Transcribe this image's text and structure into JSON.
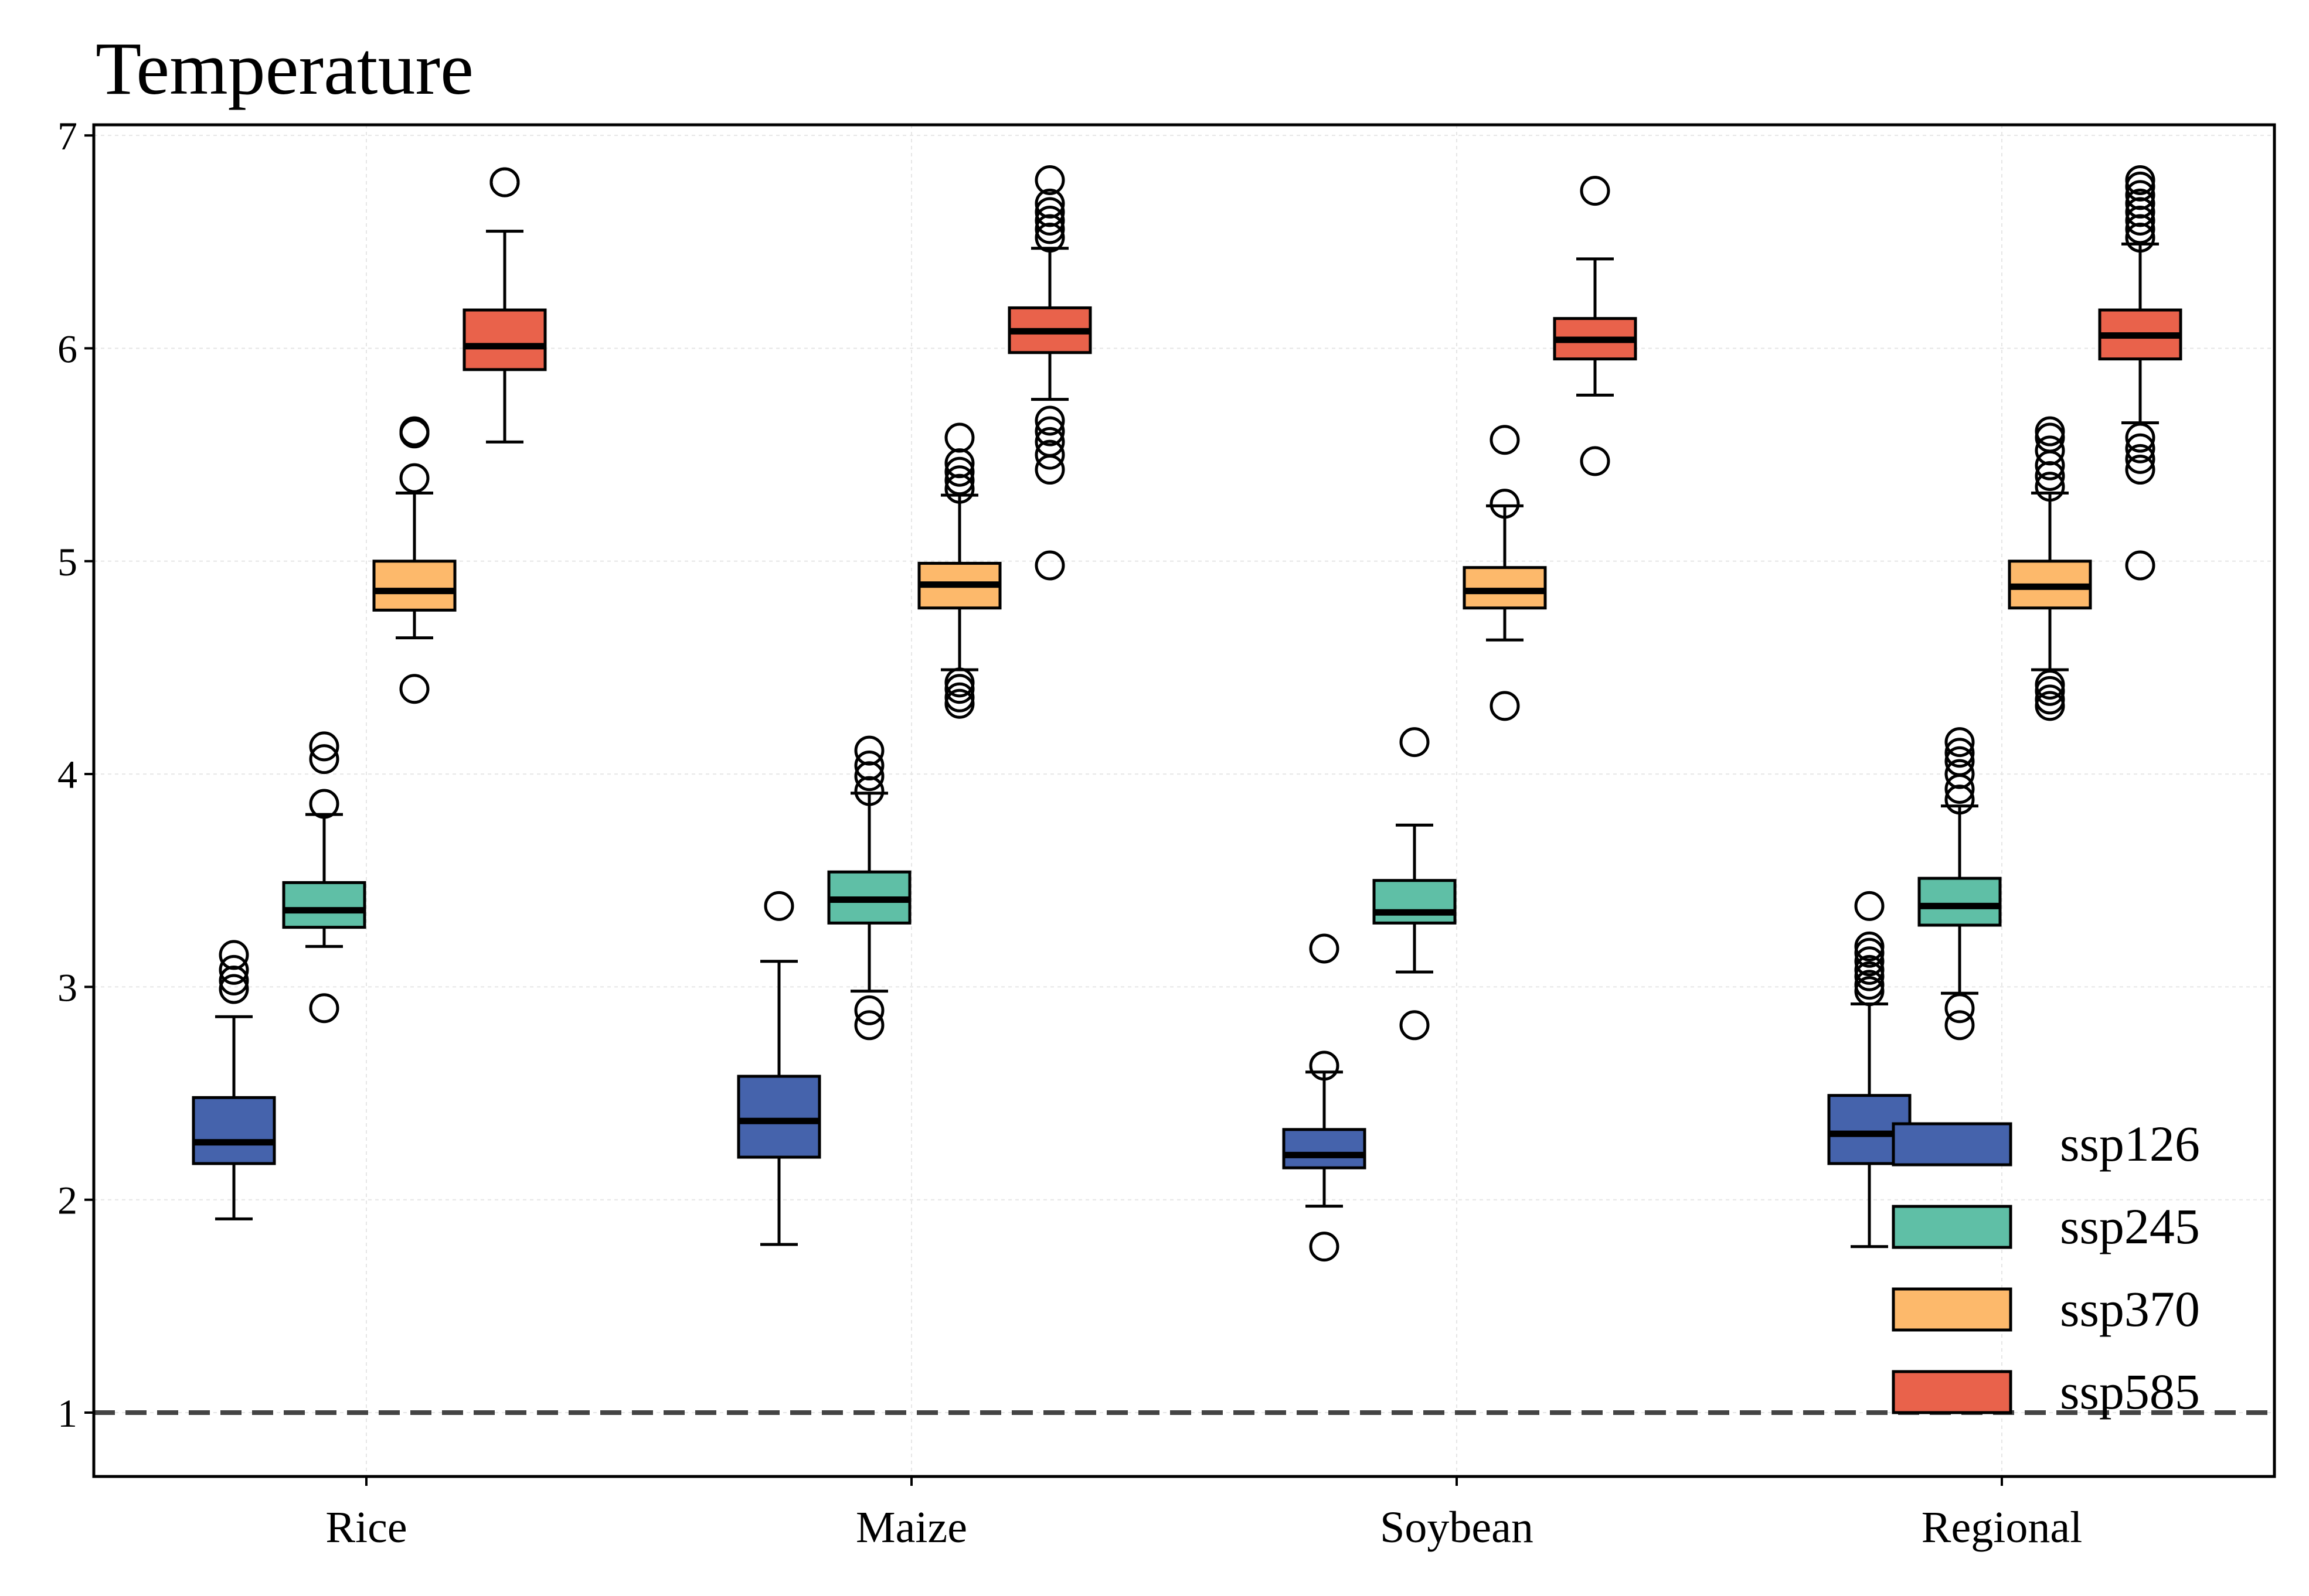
{
  "chart_data": {
    "type": "box",
    "title": "Temperature",
    "xlabel": "",
    "ylabel": "",
    "categories": [
      "Rice",
      "Maize",
      "Soybean",
      "Regional"
    ],
    "ylim": [
      0.7,
      7.05
    ],
    "yticks": [
      1,
      2,
      3,
      4,
      5,
      6,
      7
    ],
    "grid": true,
    "legend_position": "lower-right",
    "reference_line": {
      "y": 1,
      "style": "dashed",
      "color": "#444444"
    },
    "series": [
      {
        "name": "ssp126",
        "color": "#4563AC",
        "boxes": [
          {
            "whisker_low": 1.91,
            "q1": 2.17,
            "median": 2.27,
            "q3": 2.48,
            "whisker_high": 2.86,
            "outliers": [
              2.99,
              3.03,
              3.08,
              3.15
            ]
          },
          {
            "whisker_low": 1.79,
            "q1": 2.2,
            "median": 2.37,
            "q3": 2.58,
            "whisker_high": 3.12,
            "outliers": [
              3.38
            ]
          },
          {
            "whisker_low": 1.97,
            "q1": 2.15,
            "median": 2.21,
            "q3": 2.33,
            "whisker_high": 2.6,
            "outliers": [
              1.78,
              2.63,
              3.18
            ]
          },
          {
            "whisker_low": 1.78,
            "q1": 2.17,
            "median": 2.31,
            "q3": 2.49,
            "whisker_high": 2.92,
            "outliers": [
              2.98,
              3.01,
              3.05,
              3.08,
              3.12,
              3.16,
              3.19,
              3.38
            ]
          }
        ]
      },
      {
        "name": "ssp245",
        "color": "#5FBFA6",
        "boxes": [
          {
            "whisker_low": 3.19,
            "q1": 3.28,
            "median": 3.36,
            "q3": 3.49,
            "whisker_high": 3.81,
            "outliers": [
              2.9,
              3.86,
              4.07,
              4.13
            ]
          },
          {
            "whisker_low": 2.98,
            "q1": 3.3,
            "median": 3.41,
            "q3": 3.54,
            "whisker_high": 3.91,
            "outliers": [
              2.82,
              2.89,
              3.92,
              3.99,
              4.04,
              4.11
            ]
          },
          {
            "whisker_low": 3.07,
            "q1": 3.3,
            "median": 3.35,
            "q3": 3.5,
            "whisker_high": 3.76,
            "outliers": [
              2.82,
              4.15
            ]
          },
          {
            "whisker_low": 2.97,
            "q1": 3.29,
            "median": 3.38,
            "q3": 3.51,
            "whisker_high": 3.85,
            "outliers": [
              2.82,
              2.9,
              3.88,
              3.93,
              4.0,
              4.06,
              4.1,
              4.15
            ]
          }
        ]
      },
      {
        "name": "ssp370",
        "color": "#FDB96B",
        "boxes": [
          {
            "whisker_low": 4.64,
            "q1": 4.77,
            "median": 4.86,
            "q3": 5.0,
            "whisker_high": 5.32,
            "outliers": [
              4.4,
              5.39,
              5.6,
              5.61
            ]
          },
          {
            "whisker_low": 4.49,
            "q1": 4.78,
            "median": 4.89,
            "q3": 4.99,
            "whisker_high": 5.31,
            "outliers": [
              4.33,
              4.36,
              4.4,
              4.43,
              5.34,
              5.38,
              5.42,
              5.46,
              5.58
            ]
          },
          {
            "whisker_low": 4.63,
            "q1": 4.78,
            "median": 4.86,
            "q3": 4.97,
            "whisker_high": 5.26,
            "outliers": [
              4.32,
              5.27,
              5.57
            ]
          },
          {
            "whisker_low": 4.49,
            "q1": 4.78,
            "median": 4.88,
            "q3": 5.0,
            "whisker_high": 5.32,
            "outliers": [
              4.32,
              4.35,
              4.39,
              4.42,
              5.35,
              5.4,
              5.45,
              5.52,
              5.58,
              5.61
            ]
          }
        ]
      },
      {
        "name": "ssp585",
        "color": "#E9624B",
        "boxes": [
          {
            "whisker_low": 5.56,
            "q1": 5.9,
            "median": 6.01,
            "q3": 6.18,
            "whisker_high": 6.55,
            "outliers": [
              6.78,
              6.78
            ]
          },
          {
            "whisker_low": 5.76,
            "q1": 5.98,
            "median": 6.08,
            "q3": 6.19,
            "whisker_high": 6.47,
            "outliers": [
              4.98,
              5.43,
              5.5,
              5.56,
              5.61,
              5.66,
              6.52,
              6.56,
              6.6,
              6.64,
              6.68,
              6.79
            ]
          },
          {
            "whisker_low": 5.78,
            "q1": 5.95,
            "median": 6.04,
            "q3": 6.14,
            "whisker_high": 6.42,
            "outliers": [
              5.47,
              6.74
            ]
          },
          {
            "whisker_low": 5.65,
            "q1": 5.95,
            "median": 6.06,
            "q3": 6.18,
            "whisker_high": 6.49,
            "outliers": [
              4.98,
              5.43,
              5.48,
              5.53,
              5.58,
              6.52,
              6.56,
              6.6,
              6.64,
              6.68,
              6.72,
              6.76,
              6.79
            ]
          }
        ]
      }
    ]
  }
}
